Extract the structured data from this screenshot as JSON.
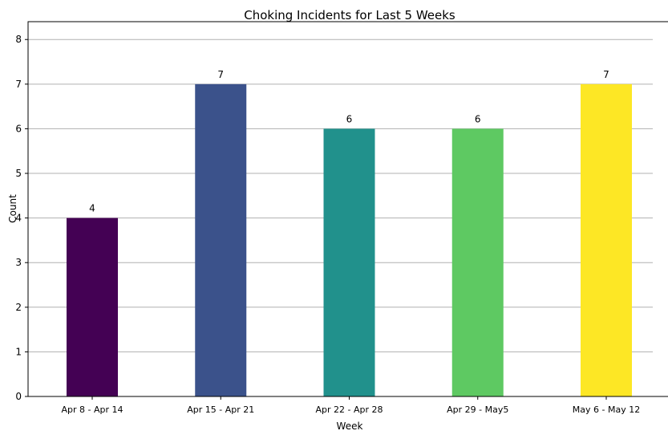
{
  "chart_data": {
    "type": "bar",
    "title": "Choking Incidents for Last 5 Weeks",
    "xlabel": "Week",
    "ylabel": "Count",
    "categories": [
      "Apr 8 - Apr 14",
      "Apr 15 - Apr 21",
      "Apr 22 - Apr 28",
      "Apr 29 - May5",
      "May 6 - May 12"
    ],
    "values": [
      4,
      7,
      6,
      6,
      7
    ],
    "colors": [
      "#440154",
      "#3b528b",
      "#21918c",
      "#5ec962",
      "#fde725"
    ],
    "ylim": [
      0,
      8.4
    ],
    "yticks": [
      0,
      1,
      2,
      3,
      4,
      5,
      6,
      7,
      8
    ],
    "grid": "y",
    "data_labels": true
  }
}
